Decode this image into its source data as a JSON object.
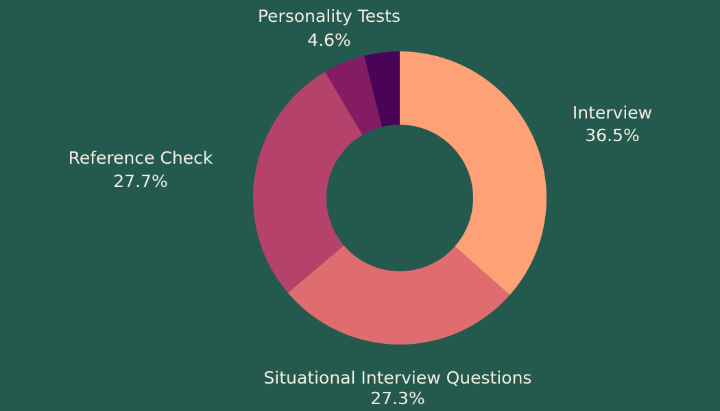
{
  "chart_data": {
    "type": "pie",
    "donut": true,
    "title": "",
    "background_color": "#245a4e",
    "label_color": "#f4efe4",
    "slices": [
      {
        "label": "Interview",
        "pct_label": "36.5%",
        "value": 36.5,
        "color": "#ffa177"
      },
      {
        "label": "Situational Interview Questions",
        "pct_label": "27.3%",
        "value": 27.3,
        "color": "#df6c6e"
      },
      {
        "label": "Reference Check",
        "pct_label": "27.7%",
        "value": 27.7,
        "color": "#b4426a"
      },
      {
        "label": "Personality Tests",
        "pct_label": "4.6%",
        "value": 4.6,
        "color": "#831c63"
      },
      {
        "label": "",
        "pct_label": "",
        "value": 3.9,
        "color": "#4a0457"
      }
    ]
  }
}
